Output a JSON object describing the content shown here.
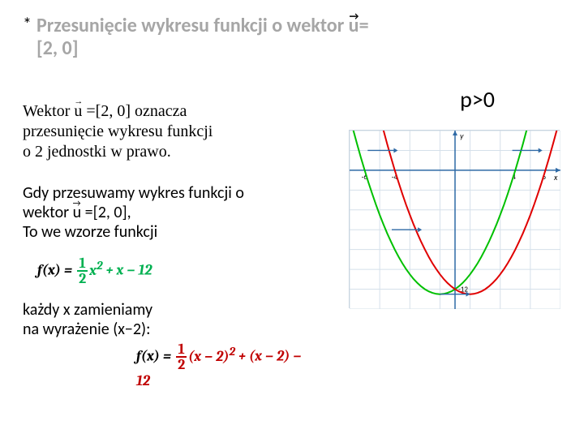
{
  "title": {
    "star": "*",
    "text_before": "Przesunięcie wykresu funkcji o wektor ",
    "u_letter": "u",
    "text_after": "=[2, 0]"
  },
  "condition": "p>0",
  "para1": {
    "line1a": "Wektor ",
    "u_letter": "u",
    "line1b": " =[2, 0] oznacza",
    "line2": "przesunięcie wykresu funkcji",
    "line3": "o 2 jednostki w prawo."
  },
  "para2": {
    "line1": "Gdy przesuwamy wykres funkcji o",
    "line2a": "wektor ",
    "u_letter": "u",
    "line2b": " =[2, 0],",
    "line3": "To we wzorze funkcji"
  },
  "formula1": {
    "lhs": "f(x) = ",
    "frac_num": "1",
    "frac_den": "2",
    "mid": "x",
    "sup": "2",
    "tail": " + x − 12"
  },
  "para3": {
    "line1": "każdy x  zamieniamy",
    "line2": "na wyrażenie (x−2):"
  },
  "formula2": {
    "lhs": "f(x) = ",
    "frac_num": "1",
    "frac_den": "2",
    "mid1": "(x − 2)",
    "sup": "2",
    "tail": " + (x − 2) − 12"
  },
  "chart": {
    "type": "line",
    "background_color": "#ffffff",
    "border_color": "#c8d4e0",
    "grid_color": "#d5e0ea",
    "axis_color": "#2f6aa6",
    "xlim": [
      -7,
      7
    ],
    "ylim": [
      -14,
      4
    ],
    "xticks": [
      -6,
      -4,
      4,
      6
    ],
    "yticks": [
      -12
    ],
    "axis_labels": {
      "x": "x",
      "y": "y"
    },
    "tick_fontsize": 9,
    "series": [
      {
        "name": "original",
        "color": "#00c000",
        "line_width": 2,
        "formula": "0.5*x*x + x - 12",
        "x_from": -7,
        "x_to": 7,
        "step": 0.25
      },
      {
        "name": "shifted",
        "color": "#e00000",
        "line_width": 2,
        "formula": "0.5*(x-2)*(x-2) + (x-2) - 12",
        "x_from": -7,
        "x_to": 7,
        "step": 0.25
      }
    ],
    "arrows": [
      {
        "at_y": 2,
        "from_x": -5.8,
        "to_x": -3.8,
        "color": "#2f6aa6"
      },
      {
        "at_y": 2,
        "from_x": 3.8,
        "to_x": 5.8,
        "color": "#2f6aa6"
      },
      {
        "at_y": -6,
        "from_x": -4.2,
        "to_x": -2.2,
        "color": "#2f6aa6"
      },
      {
        "at_y": -12.5,
        "from_x": -1,
        "to_x": 1,
        "color": "#2f6aa6"
      }
    ]
  }
}
